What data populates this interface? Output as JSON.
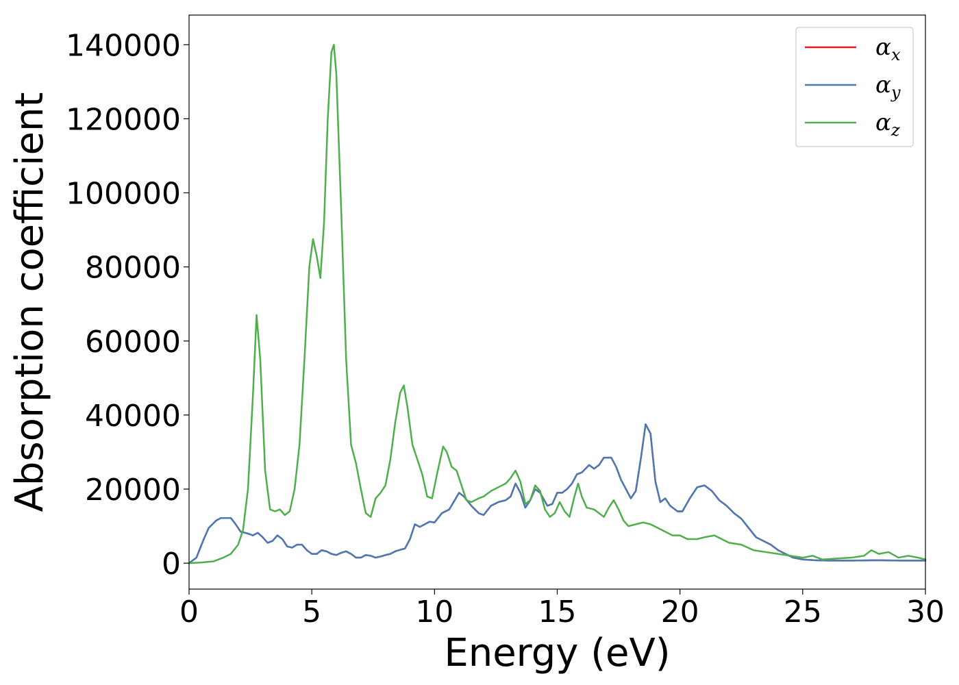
{
  "chart_data": {
    "type": "line",
    "xlabel": "Energy (eV)",
    "ylabel": "Absorption coefficient",
    "xlim": [
      0,
      30
    ],
    "ylim": [
      -7000,
      148000
    ],
    "xticks": [
      0,
      5,
      10,
      15,
      20,
      25,
      30
    ],
    "yticks": [
      0,
      20000,
      40000,
      60000,
      80000,
      100000,
      120000,
      140000
    ],
    "grid": false,
    "legend_position": "top-right",
    "series": [
      {
        "name": "α_x",
        "legend_main": "α",
        "legend_sub": "x",
        "color": "#e41a1c",
        "same_as": "α_y"
      },
      {
        "name": "α_y",
        "legend_main": "α",
        "legend_sub": "y",
        "color": "#4a7ab5",
        "points": [
          [
            0.0,
            0
          ],
          [
            0.3,
            1500
          ],
          [
            0.6,
            6500
          ],
          [
            0.8,
            9500
          ],
          [
            1.1,
            11500
          ],
          [
            1.3,
            12200
          ],
          [
            1.7,
            12200
          ],
          [
            1.9,
            10500
          ],
          [
            2.1,
            8500
          ],
          [
            2.4,
            8000
          ],
          [
            2.6,
            7500
          ],
          [
            2.8,
            8200
          ],
          [
            3.0,
            7000
          ],
          [
            3.2,
            5500
          ],
          [
            3.4,
            6000
          ],
          [
            3.6,
            7500
          ],
          [
            3.8,
            6500
          ],
          [
            4.0,
            4500
          ],
          [
            4.2,
            4200
          ],
          [
            4.4,
            5000
          ],
          [
            4.6,
            5000
          ],
          [
            4.8,
            3500
          ],
          [
            5.0,
            2500
          ],
          [
            5.2,
            2500
          ],
          [
            5.4,
            3500
          ],
          [
            5.6,
            3200
          ],
          [
            5.8,
            2500
          ],
          [
            6.0,
            2200
          ],
          [
            6.2,
            2800
          ],
          [
            6.4,
            3200
          ],
          [
            6.6,
            2500
          ],
          [
            6.8,
            1500
          ],
          [
            7.0,
            1500
          ],
          [
            7.2,
            2200
          ],
          [
            7.4,
            2000
          ],
          [
            7.6,
            1500
          ],
          [
            7.8,
            1800
          ],
          [
            8.0,
            2200
          ],
          [
            8.2,
            2500
          ],
          [
            8.4,
            3200
          ],
          [
            8.8,
            4000
          ],
          [
            9.0,
            6500
          ],
          [
            9.2,
            10500
          ],
          [
            9.4,
            9800
          ],
          [
            9.6,
            10500
          ],
          [
            9.8,
            11200
          ],
          [
            10.0,
            11000
          ],
          [
            10.3,
            13500
          ],
          [
            10.6,
            14500
          ],
          [
            11.0,
            19000
          ],
          [
            11.2,
            18000
          ],
          [
            11.5,
            15500
          ],
          [
            11.8,
            13500
          ],
          [
            12.0,
            13000
          ],
          [
            12.3,
            15500
          ],
          [
            12.6,
            16500
          ],
          [
            12.9,
            17000
          ],
          [
            13.1,
            18000
          ],
          [
            13.3,
            21500
          ],
          [
            13.5,
            19000
          ],
          [
            13.7,
            15000
          ],
          [
            13.9,
            17000
          ],
          [
            14.1,
            20000
          ],
          [
            14.3,
            19000
          ],
          [
            14.6,
            15500
          ],
          [
            14.8,
            16000
          ],
          [
            15.0,
            19000
          ],
          [
            15.2,
            19000
          ],
          [
            15.4,
            20000
          ],
          [
            15.6,
            21500
          ],
          [
            15.8,
            24000
          ],
          [
            16.0,
            24500
          ],
          [
            16.3,
            26500
          ],
          [
            16.5,
            25500
          ],
          [
            16.7,
            26500
          ],
          [
            16.9,
            28500
          ],
          [
            17.2,
            28500
          ],
          [
            17.4,
            26000
          ],
          [
            17.6,
            22500
          ],
          [
            17.8,
            20000
          ],
          [
            18.0,
            17500
          ],
          [
            18.2,
            19500
          ],
          [
            18.4,
            28000
          ],
          [
            18.6,
            37500
          ],
          [
            18.8,
            35000
          ],
          [
            19.0,
            22000
          ],
          [
            19.2,
            16500
          ],
          [
            19.4,
            17500
          ],
          [
            19.6,
            15500
          ],
          [
            19.9,
            14000
          ],
          [
            20.1,
            14000
          ],
          [
            20.4,
            17500
          ],
          [
            20.7,
            20500
          ],
          [
            21.0,
            21000
          ],
          [
            21.3,
            19500
          ],
          [
            21.6,
            17000
          ],
          [
            21.9,
            15500
          ],
          [
            22.2,
            13500
          ],
          [
            22.5,
            12000
          ],
          [
            22.8,
            9500
          ],
          [
            23.1,
            7000
          ],
          [
            23.4,
            6000
          ],
          [
            23.7,
            5000
          ],
          [
            24.0,
            3500
          ],
          [
            24.3,
            2500
          ],
          [
            24.6,
            1500
          ],
          [
            25.0,
            1000
          ],
          [
            25.5,
            800
          ],
          [
            26.0,
            700
          ],
          [
            27.0,
            700
          ],
          [
            28.0,
            800
          ],
          [
            29.0,
            700
          ],
          [
            30.0,
            700
          ]
        ]
      },
      {
        "name": "α_z",
        "legend_main": "α",
        "legend_sub": "z",
        "color": "#4daf4a",
        "points": [
          [
            0.0,
            0
          ],
          [
            0.5,
            200
          ],
          [
            1.0,
            500
          ],
          [
            1.4,
            1500
          ],
          [
            1.7,
            2500
          ],
          [
            2.0,
            5000
          ],
          [
            2.2,
            9000
          ],
          [
            2.4,
            20000
          ],
          [
            2.6,
            45000
          ],
          [
            2.75,
            67000
          ],
          [
            2.9,
            55000
          ],
          [
            3.1,
            25000
          ],
          [
            3.3,
            14500
          ],
          [
            3.5,
            14000
          ],
          [
            3.7,
            14500
          ],
          [
            3.9,
            13000
          ],
          [
            4.1,
            14000
          ],
          [
            4.3,
            20000
          ],
          [
            4.5,
            32000
          ],
          [
            4.7,
            55000
          ],
          [
            4.9,
            80000
          ],
          [
            5.05,
            87500
          ],
          [
            5.2,
            83000
          ],
          [
            5.35,
            77000
          ],
          [
            5.5,
            92000
          ],
          [
            5.65,
            120000
          ],
          [
            5.8,
            138000
          ],
          [
            5.9,
            140000
          ],
          [
            6.0,
            132000
          ],
          [
            6.2,
            95000
          ],
          [
            6.4,
            55000
          ],
          [
            6.6,
            32000
          ],
          [
            6.8,
            27000
          ],
          [
            7.0,
            20000
          ],
          [
            7.2,
            13500
          ],
          [
            7.4,
            12500
          ],
          [
            7.6,
            17500
          ],
          [
            7.8,
            19000
          ],
          [
            8.0,
            21000
          ],
          [
            8.2,
            28000
          ],
          [
            8.4,
            38000
          ],
          [
            8.6,
            46000
          ],
          [
            8.75,
            48000
          ],
          [
            8.9,
            42000
          ],
          [
            9.1,
            32000
          ],
          [
            9.3,
            28000
          ],
          [
            9.5,
            24000
          ],
          [
            9.7,
            18000
          ],
          [
            9.9,
            17500
          ],
          [
            10.1,
            24000
          ],
          [
            10.35,
            31500
          ],
          [
            10.5,
            30000
          ],
          [
            10.7,
            26000
          ],
          [
            10.9,
            25000
          ],
          [
            11.1,
            21000
          ],
          [
            11.3,
            17000
          ],
          [
            11.5,
            16500
          ],
          [
            11.8,
            17500
          ],
          [
            12.0,
            18000
          ],
          [
            12.3,
            19500
          ],
          [
            12.6,
            20500
          ],
          [
            12.9,
            21500
          ],
          [
            13.1,
            23000
          ],
          [
            13.3,
            25000
          ],
          [
            13.5,
            22000
          ],
          [
            13.7,
            16000
          ],
          [
            13.9,
            17000
          ],
          [
            14.1,
            21000
          ],
          [
            14.3,
            19500
          ],
          [
            14.5,
            14500
          ],
          [
            14.7,
            12500
          ],
          [
            14.9,
            13500
          ],
          [
            15.1,
            16500
          ],
          [
            15.3,
            14000
          ],
          [
            15.5,
            12500
          ],
          [
            15.7,
            18000
          ],
          [
            15.85,
            21500
          ],
          [
            16.0,
            18000
          ],
          [
            16.2,
            15000
          ],
          [
            16.5,
            14500
          ],
          [
            16.7,
            13500
          ],
          [
            16.9,
            12500
          ],
          [
            17.1,
            15000
          ],
          [
            17.3,
            17000
          ],
          [
            17.5,
            14500
          ],
          [
            17.7,
            11500
          ],
          [
            17.9,
            10000
          ],
          [
            18.2,
            10500
          ],
          [
            18.5,
            11000
          ],
          [
            18.8,
            10500
          ],
          [
            19.1,
            9500
          ],
          [
            19.4,
            8500
          ],
          [
            19.7,
            7500
          ],
          [
            20.0,
            7500
          ],
          [
            20.3,
            6500
          ],
          [
            20.7,
            6500
          ],
          [
            21.0,
            7000
          ],
          [
            21.4,
            7500
          ],
          [
            21.7,
            6500
          ],
          [
            22.0,
            5500
          ],
          [
            22.5,
            5000
          ],
          [
            23.0,
            3500
          ],
          [
            23.5,
            3000
          ],
          [
            24.0,
            2500
          ],
          [
            24.5,
            2000
          ],
          [
            25.0,
            1500
          ],
          [
            25.4,
            2000
          ],
          [
            25.8,
            1000
          ],
          [
            26.5,
            1300
          ],
          [
            27.0,
            1500
          ],
          [
            27.5,
            2000
          ],
          [
            27.8,
            3500
          ],
          [
            28.1,
            2500
          ],
          [
            28.5,
            3000
          ],
          [
            28.9,
            1500
          ],
          [
            29.3,
            2000
          ],
          [
            29.7,
            1500
          ],
          [
            30.0,
            1000
          ]
        ]
      }
    ]
  }
}
